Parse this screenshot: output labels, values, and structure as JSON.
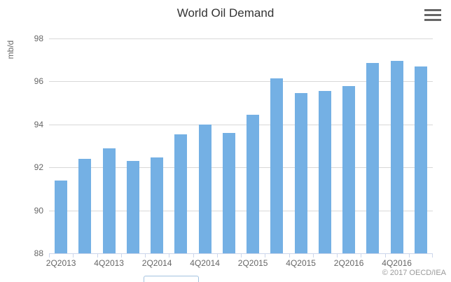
{
  "title": "World Oil Demand",
  "export_menu": {
    "icon": "hamburger-menu-icon"
  },
  "credits": "© 2017 OECD/IEA",
  "colors": {
    "bar": "#74b0e4",
    "title_text": "#333333",
    "axis_label_text": "#666666",
    "gridline": "#d8d8d8",
    "axis_line": "#ccd6eb",
    "credits_text": "#999999"
  },
  "chart_data": {
    "type": "bar",
    "title": "World Oil Demand",
    "xlabel": "",
    "ylabel": "mb/d",
    "ylim": [
      88,
      98
    ],
    "yticks": [
      88,
      90,
      92,
      94,
      96,
      98
    ],
    "grid": true,
    "legend_position": "none",
    "categories": [
      "2Q2013",
      "3Q2013",
      "4Q2013",
      "1Q2014",
      "2Q2014",
      "3Q2014",
      "4Q2014",
      "1Q2015",
      "2Q2015",
      "3Q2015",
      "4Q2015",
      "1Q2016",
      "2Q2016",
      "3Q2016",
      "4Q2016",
      "1Q2017"
    ],
    "values": [
      91.4,
      92.4,
      92.9,
      92.3,
      92.45,
      93.55,
      94.0,
      93.6,
      94.45,
      96.15,
      95.45,
      95.55,
      95.8,
      96.85,
      96.95,
      96.7
    ],
    "x_tick_labels_shown": [
      "2Q2013",
      "4Q2013",
      "2Q2014",
      "4Q2014",
      "2Q2015",
      "4Q2015",
      "2Q2016",
      "4Q2016"
    ],
    "x_label_every": 2
  }
}
